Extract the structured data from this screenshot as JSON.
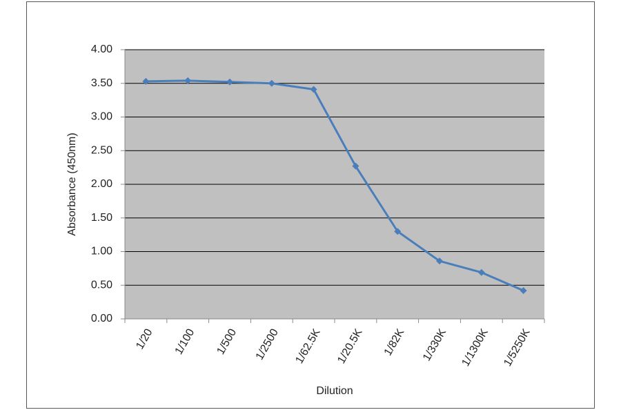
{
  "chart_data": {
    "type": "line",
    "x_label": "Dilution",
    "y_label": "Absorbance (450nm)",
    "categories": [
      "1/20",
      "1/100",
      "1/500",
      "1/2500",
      "1/62.5K",
      "1/20.5K",
      "1/82K",
      "1/330K",
      "1/1300K",
      "1/5250K"
    ],
    "values": [
      3.53,
      3.54,
      3.52,
      3.5,
      3.41,
      2.27,
      1.3,
      0.86,
      0.69,
      0.42
    ],
    "color": "#4a7ebb",
    "ylim": [
      0,
      4
    ],
    "yticks": [
      {
        "value": 0,
        "label": "0.00"
      },
      {
        "value": 0.5,
        "label": "0.50"
      },
      {
        "value": 1,
        "label": "1.00"
      },
      {
        "value": 1.5,
        "label": "1.50"
      },
      {
        "value": 2,
        "label": "2.00"
      },
      {
        "value": 2.5,
        "label": "2.50"
      },
      {
        "value": 3,
        "label": "3.00"
      },
      {
        "value": 3.5,
        "label": "3.50"
      },
      {
        "value": 4,
        "label": "4.00"
      }
    ],
    "grid": true
  }
}
